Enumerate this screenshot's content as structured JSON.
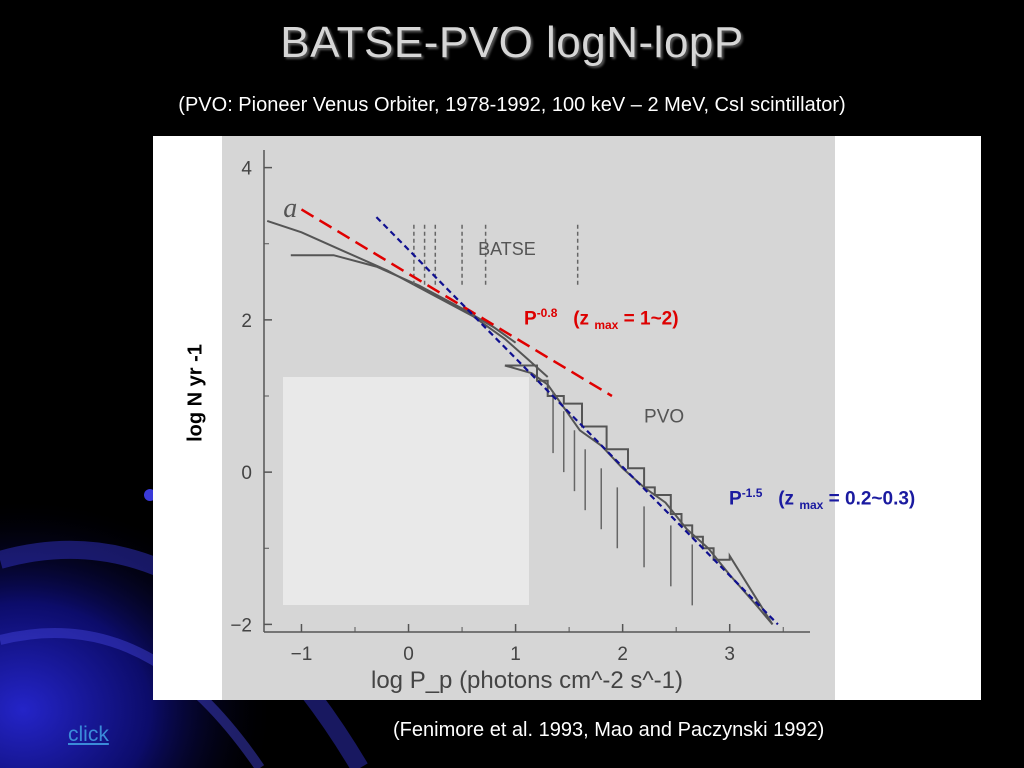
{
  "slide": {
    "title": "BATSE-PVO logN-lopP",
    "subtitle": "(PVO: Pioneer Venus Orbiter, 1978-1992, 100 keV – 2 MeV, CsI scintillator)",
    "citation": "(Fenimore et al. 1993, Mao and Paczynski 1992)",
    "link_label": "click"
  },
  "chart_data": {
    "type": "line",
    "panel_letter": "a",
    "xlabel": "log P_p (photons cm^-2 s^-1)",
    "ylabel": "log N yr -1",
    "xlim": [
      -1.35,
      3.75
    ],
    "ylim": [
      -2.1,
      4.1
    ],
    "x_ticks": [
      -1,
      0,
      1,
      2,
      3
    ],
    "y_ticks": [
      -2,
      0,
      2,
      4
    ],
    "x_tick_labels": [
      "−1",
      "0",
      "1",
      "2",
      "3"
    ],
    "y_tick_labels": [
      "−2",
      "0",
      "2",
      "4"
    ],
    "series_labels": [
      "BATSE",
      "PVO"
    ],
    "series": [
      {
        "name": "BATSE",
        "x": [
          -1.32,
          -1.0,
          -0.6,
          -0.2,
          0.2,
          0.6,
          0.9,
          1.1,
          1.3
        ],
        "y": [
          3.3,
          3.15,
          2.9,
          2.65,
          2.35,
          2.05,
          1.75,
          1.5,
          1.25
        ]
      },
      {
        "name": "BATSE",
        "x": [
          -1.1,
          -0.7,
          -0.3,
          0.1,
          0.5,
          0.8,
          1.0
        ],
        "y": [
          2.85,
          2.85,
          2.7,
          2.45,
          2.15,
          1.9,
          1.7
        ]
      },
      {
        "name": "PVO",
        "x": [
          0.9,
          1.15,
          1.3,
          1.45,
          1.6,
          1.8,
          2.0,
          2.2,
          2.4,
          2.6,
          2.8,
          3.0,
          3.25,
          3.4
        ],
        "y": [
          1.4,
          1.3,
          1.15,
          0.85,
          0.55,
          0.35,
          0.05,
          -0.2,
          -0.4,
          -0.75,
          -1.0,
          -1.35,
          -1.75,
          -2.0
        ]
      }
    ],
    "pvo_steps": {
      "x": [
        0.9,
        1.2,
        1.2,
        1.3,
        1.3,
        1.45,
        1.45,
        1.62,
        1.62,
        1.85,
        1.85,
        2.05,
        2.05,
        2.2,
        2.2,
        2.3,
        2.3,
        2.45,
        2.45,
        2.55,
        2.55,
        2.65,
        2.65,
        2.75,
        2.75,
        2.85,
        2.85,
        3.0,
        3.0,
        3.4
      ],
      "y": [
        1.4,
        1.4,
        1.2,
        1.2,
        1.0,
        1.0,
        0.9,
        0.9,
        0.6,
        0.6,
        0.3,
        0.3,
        0.05,
        0.05,
        -0.2,
        -0.2,
        -0.3,
        -0.3,
        -0.55,
        -0.55,
        -0.7,
        -0.7,
        -0.85,
        -0.85,
        -1.0,
        -1.0,
        -1.15,
        -1.15,
        -1.1,
        -2.0
      ]
    },
    "fits": [
      {
        "label": "P",
        "exponent": "-0.8",
        "zmax": "(z",
        "zmax_sub": "max",
        "zmax_range": "= 1~2)",
        "color": "#e00000",
        "x": [
          -1.0,
          1.9
        ],
        "y": [
          3.45,
          1.0
        ]
      },
      {
        "label": "P",
        "exponent": "-1.5",
        "zmax": "(z",
        "zmax_sub": "max",
        "zmax_range": "= 0.2~0.3)",
        "color": "#101090",
        "x": [
          -0.3,
          3.45
        ],
        "y": [
          3.35,
          -2.0
        ]
      }
    ],
    "grid": false,
    "legend": "none"
  }
}
